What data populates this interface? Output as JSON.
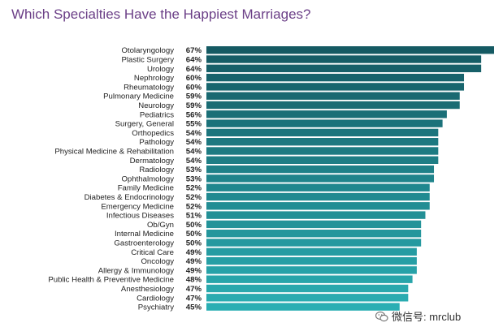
{
  "chart_data": {
    "type": "bar",
    "orientation": "horizontal",
    "title": "Which Specialties Have the Happiest Marriages?",
    "xlabel": "",
    "ylabel": "",
    "value_suffix": "%",
    "categories": [
      "Otolaryngology",
      "Plastic Surgery",
      "Urology",
      "Nephrology",
      "Rheumatology",
      "Pulmonary Medicine",
      "Neurology",
      "Pediatrics",
      "Surgery, General",
      "Orthopedics",
      "Pathology",
      "Physical Medicine & Rehabilitation",
      "Dermatology",
      "Radiology",
      "Ophthalmology",
      "Family Medicine",
      "Diabetes & Endocrinology",
      "Emergency Medicine",
      "Infectious Diseases",
      "Ob/Gyn",
      "Internal Medicine",
      "Gastroenterology",
      "Critical Care",
      "Oncology",
      "Allergy & Immunology",
      "Public Health & Preventive Medicine",
      "Anesthesiology",
      "Cardiology",
      "Psychiatry"
    ],
    "values": [
      67,
      64,
      64,
      60,
      60,
      59,
      59,
      56,
      55,
      54,
      54,
      54,
      54,
      53,
      53,
      52,
      52,
      52,
      51,
      50,
      50,
      50,
      49,
      49,
      49,
      48,
      47,
      47,
      45
    ],
    "colors": {
      "start": "#155a63",
      "end": "#2aaeb3"
    }
  },
  "watermark": {
    "text": "微信号: mrclub",
    "icon": "wechat-icon"
  }
}
